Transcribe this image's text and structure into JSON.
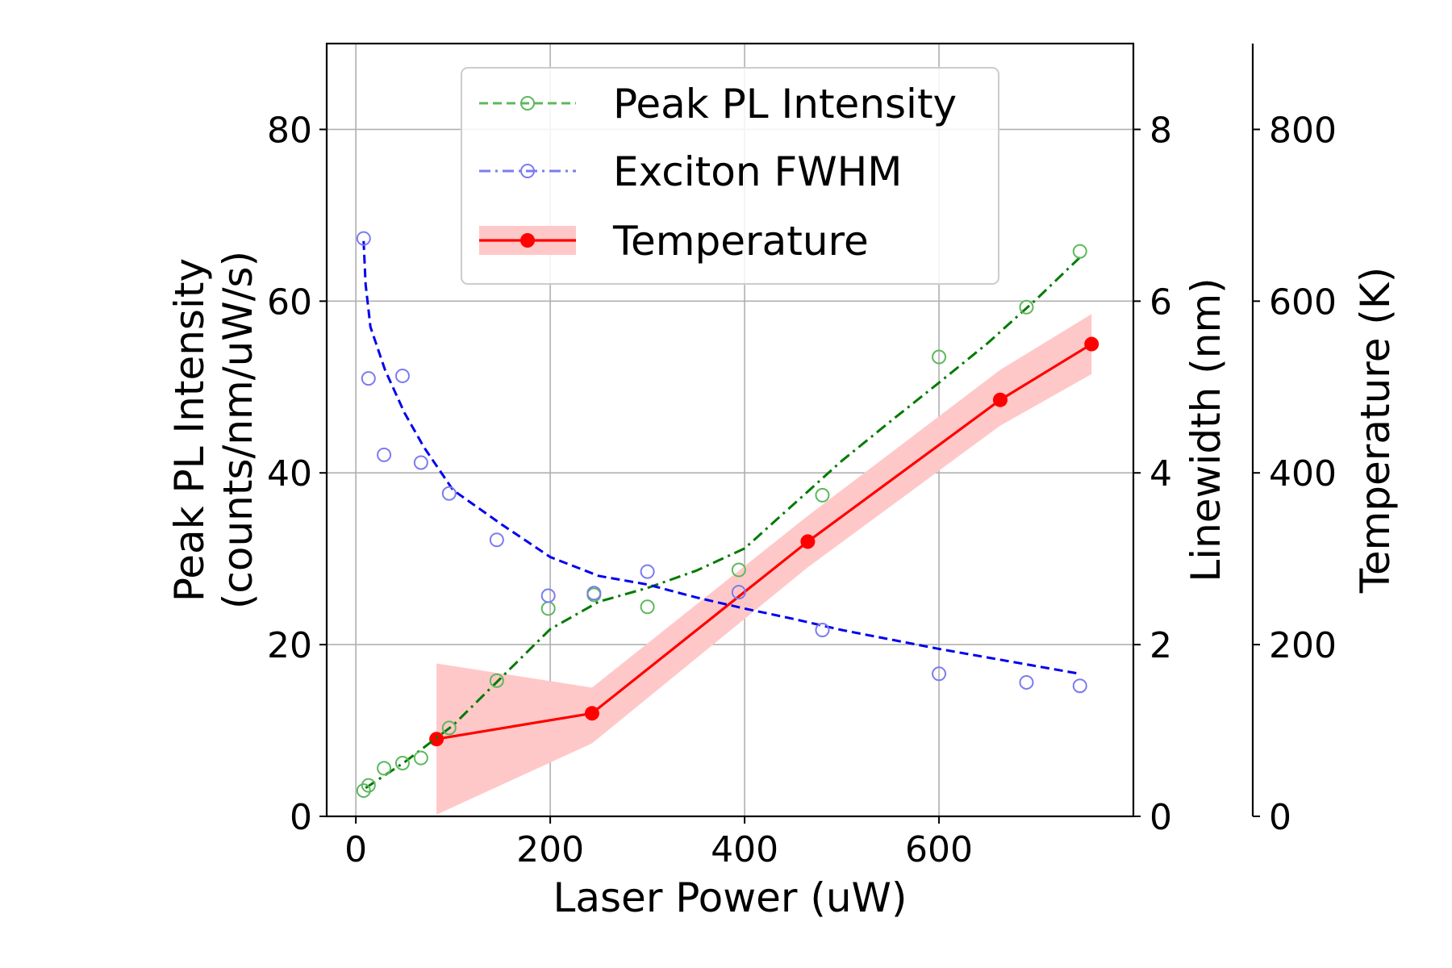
{
  "chart_data": {
    "type": "line",
    "title": "",
    "xlabel": "Laser Power (uW)",
    "ylabel_lines": [
      "Peak PL Intensity",
      "(counts/nm/uW/s)"
    ],
    "ylabel_right": "Linewidth (nm)",
    "ylabel_far_right": "Temperature (K)",
    "xlim": [
      -30,
      800
    ],
    "ylim_left": [
      0,
      90
    ],
    "ylim_right": [
      0,
      9
    ],
    "ylim_far_right": [
      0,
      900
    ],
    "xticks": [
      0,
      200,
      400,
      600
    ],
    "xtick_labels": [
      "0",
      "200",
      "400",
      "600"
    ],
    "yticks_left": [
      0,
      20,
      40,
      60,
      80
    ],
    "ytick_labels_left": [
      "0",
      "20",
      "40",
      "60",
      "80"
    ],
    "yticks_right": [
      0,
      2,
      4,
      6,
      8
    ],
    "ytick_labels_right": [
      "0",
      "2",
      "4",
      "6",
      "8"
    ],
    "yticks_far_right": [
      0,
      200,
      400,
      600,
      800
    ],
    "ytick_labels_far_right": [
      "0",
      "200",
      "400",
      "600",
      "800"
    ],
    "grid": true,
    "legend_position": "top-center",
    "legend": [
      "Peak PL Intensity",
      "Exciton FWHM",
      "Temperature"
    ],
    "colors": {
      "intensity_points": "#5cb85c",
      "intensity_fit": "#007a00",
      "fwhm_points": "#7b7bf0",
      "fwhm_fit": "#0000ee",
      "temperature": "#ff0000",
      "temperature_band": "#ffc8c8"
    },
    "series": [
      {
        "name": "Peak PL Intensity",
        "axis": "left",
        "x": [
          8,
          13,
          29,
          48,
          67,
          96,
          145,
          198,
          245,
          300,
          394,
          480,
          600,
          690,
          745
        ],
        "y": [
          3.0,
          3.6,
          5.6,
          6.2,
          6.8,
          10.3,
          15.8,
          24.2,
          25.8,
          24.4,
          28.7,
          37.4,
          53.5,
          59.3,
          65.8
        ],
        "fit_x": [
          10,
          50,
          100,
          150,
          200,
          250,
          300,
          350,
          400,
          450,
          500,
          550,
          600,
          650,
          700,
          745
        ],
        "fit_y": [
          3.3,
          6.3,
          10.6,
          16.2,
          21.8,
          25.0,
          26.6,
          28.6,
          31.2,
          36.3,
          41.4,
          46.0,
          50.5,
          55.1,
          60.2,
          65.1
        ]
      },
      {
        "name": "Exciton FWHM",
        "axis": "right",
        "x": [
          8,
          13,
          29,
          48,
          67,
          96,
          145,
          198,
          245,
          300,
          394,
          480,
          600,
          690,
          745
        ],
        "y": [
          6.73,
          5.1,
          4.21,
          5.13,
          4.12,
          3.76,
          3.22,
          2.57,
          2.6,
          2.85,
          2.61,
          2.17,
          1.66,
          1.56,
          1.52
        ],
        "fit_x": [
          8,
          10,
          15,
          30,
          50,
          70,
          100,
          150,
          200,
          250,
          300,
          350,
          400,
          450,
          500,
          600,
          700,
          745
        ],
        "fit_y": [
          6.7,
          6.2,
          5.7,
          5.2,
          4.7,
          4.3,
          3.8,
          3.4,
          3.02,
          2.8,
          2.7,
          2.55,
          2.42,
          2.3,
          2.17,
          1.95,
          1.75,
          1.66
        ]
      },
      {
        "name": "Temperature",
        "axis": "far_right",
        "x": [
          83,
          243,
          465,
          663,
          757
        ],
        "y": [
          90,
          120,
          320,
          485,
          550
        ],
        "band_upper": [
          178,
          150,
          350,
          520,
          585
        ],
        "band_lower": [
          2,
          85,
          290,
          455,
          515
        ]
      }
    ]
  }
}
